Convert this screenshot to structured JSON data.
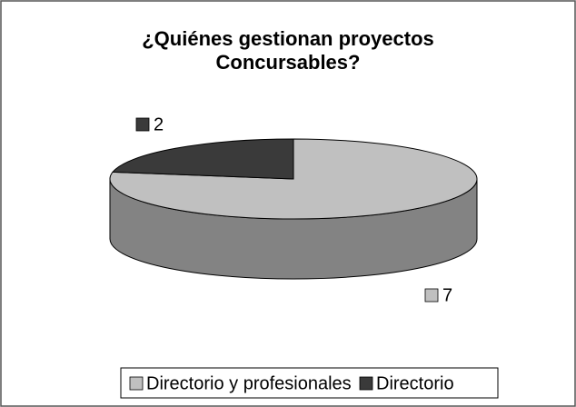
{
  "chart_data": {
    "type": "pie3d",
    "title": "¿Quiénes gestionan proyectos Concursables?",
    "categories": [
      "Directorio y profesionales",
      "Directorio"
    ],
    "values": [
      7,
      2
    ],
    "colors": [
      "#c0c0c0",
      "#3a3a3a"
    ],
    "legend": "bottom"
  }
}
